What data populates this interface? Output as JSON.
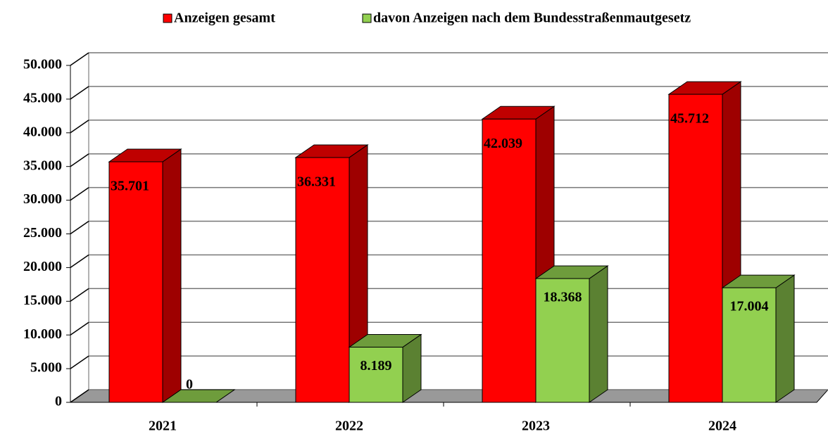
{
  "chart_data": {
    "type": "bar3d",
    "categories": [
      "2021",
      "2022",
      "2023",
      "2024"
    ],
    "series": [
      {
        "name": "Anzeigen gesamt",
        "color": "#ff0000",
        "values": [
          35701,
          36331,
          42039,
          45712
        ],
        "value_labels": [
          "35.701",
          "36.331",
          "42.039",
          "45.712"
        ]
      },
      {
        "name": "davon Anzeigen nach dem Bundesstraßenmautgesetz",
        "color": "#92d050",
        "values": [
          0,
          8189,
          18368,
          17004
        ],
        "value_labels": [
          "0",
          "8.189",
          "18.368",
          "17.004"
        ]
      }
    ],
    "ylim": [
      0,
      50000
    ],
    "yticks": [
      0,
      {
        "value": 5000,
        "label": "5.000"
      },
      {
        "value": 10000,
        "label": "10.000"
      },
      {
        "value": 15000,
        "label": "15.000"
      },
      {
        "value": 20000,
        "label": "20.000"
      },
      {
        "value": 25000,
        "label": "25.000"
      },
      {
        "value": 30000,
        "label": "30.000"
      },
      {
        "value": 35000,
        "label": "35.000"
      },
      {
        "value": 40000,
        "label": "40.000"
      },
      {
        "value": 45000,
        "label": "45.000"
      },
      {
        "value": 50000,
        "label": "50.000"
      }
    ],
    "grid": true,
    "legend": "top"
  }
}
